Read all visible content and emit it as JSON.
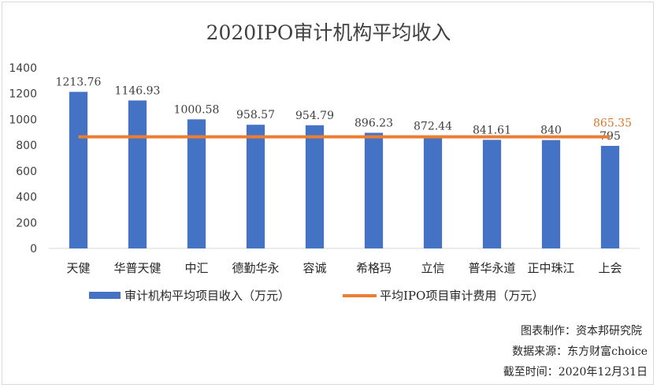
{
  "chart_data": {
    "type": "bar",
    "title": "2020IPO审计机构平均收入",
    "categories": [
      "天健",
      "华普天健",
      "中汇",
      "德勤华永",
      "容诚",
      "希格玛",
      "立信",
      "普华永道",
      "正中珠江",
      "上会"
    ],
    "series": [
      {
        "name": "审计机构平均项目收入（万元）",
        "values": [
          1213.76,
          1146.93,
          1000.58,
          958.57,
          954.79,
          896.23,
          872.44,
          841.61,
          840,
          795
        ],
        "color": "#4472c4"
      }
    ],
    "reference_line": {
      "name": "平均IPO项目审计费用（万元）",
      "value": 865.35,
      "label": "865.35",
      "color": "#ed7d31"
    },
    "ylim": [
      0,
      1400
    ],
    "yticks": [
      0,
      200,
      400,
      600,
      800,
      1000,
      1200,
      1400
    ],
    "grid": false,
    "legend_position": "bottom"
  },
  "footnotes": {
    "producer": "图表制作：资本邦研究院",
    "source": "数据来源：东方财富choice",
    "date": "截至时间：2020年12月31日"
  }
}
